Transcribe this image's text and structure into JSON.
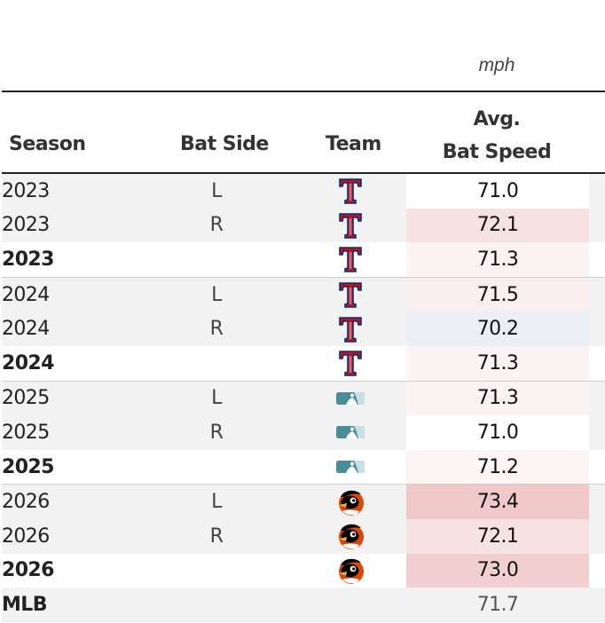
{
  "table": {
    "unit_label": "mph",
    "headers": {
      "season": "Season",
      "bat_side": "Bat Side",
      "team": "Team",
      "avg_bat_speed_line1": "Avg.",
      "avg_bat_speed_line2": "Bat Speed"
    },
    "rows": [
      {
        "season": "2023",
        "side": "L",
        "team": "texas-rangers-logo",
        "speed": "71.0",
        "bold": false,
        "shaded": true,
        "group_start": false,
        "cell_color": "#ffffff"
      },
      {
        "season": "2023",
        "side": "R",
        "team": "texas-rangers-logo",
        "speed": "72.1",
        "bold": false,
        "shaded": true,
        "group_start": false,
        "cell_color": "#f7e2e2"
      },
      {
        "season": "2023",
        "side": "",
        "team": "texas-rangers-logo",
        "speed": "71.3",
        "bold": true,
        "shaded": false,
        "group_start": false,
        "cell_color": "#fbf3f3"
      },
      {
        "season": "2024",
        "side": "L",
        "team": "texas-rangers-logo",
        "speed": "71.5",
        "bold": false,
        "shaded": true,
        "group_start": true,
        "cell_color": "#fbeeee"
      },
      {
        "season": "2024",
        "side": "R",
        "team": "texas-rangers-logo",
        "speed": "70.2",
        "bold": false,
        "shaded": true,
        "group_start": false,
        "cell_color": "#eceef6"
      },
      {
        "season": "2024",
        "side": "",
        "team": "texas-rangers-logo",
        "speed": "71.3",
        "bold": true,
        "shaded": false,
        "group_start": false,
        "cell_color": "#fbf3f3"
      },
      {
        "season": "2025",
        "side": "L",
        "team": "mlb-logo",
        "speed": "71.3",
        "bold": false,
        "shaded": true,
        "group_start": true,
        "cell_color": "#fbf3f3"
      },
      {
        "season": "2025",
        "side": "R",
        "team": "mlb-logo",
        "speed": "71.0",
        "bold": false,
        "shaded": true,
        "group_start": false,
        "cell_color": "#ffffff"
      },
      {
        "season": "2025",
        "side": "",
        "team": "mlb-logo",
        "speed": "71.2",
        "bold": true,
        "shaded": false,
        "group_start": false,
        "cell_color": "#fcf5f5"
      },
      {
        "season": "2026",
        "side": "L",
        "team": "baltimore-orioles-logo",
        "speed": "73.4",
        "bold": false,
        "shaded": true,
        "group_start": true,
        "cell_color": "#f0c8c8"
      },
      {
        "season": "2026",
        "side": "R",
        "team": "baltimore-orioles-logo",
        "speed": "72.1",
        "bold": false,
        "shaded": true,
        "group_start": false,
        "cell_color": "#f7e2e2"
      },
      {
        "season": "2026",
        "side": "",
        "team": "baltimore-orioles-logo",
        "speed": "73.0",
        "bold": true,
        "shaded": false,
        "group_start": false,
        "cell_color": "#f2d0d0"
      },
      {
        "season": "MLB",
        "side": "",
        "team": "",
        "speed": "71.7",
        "bold": true,
        "shaded": true,
        "group_start": false,
        "cell_color": ""
      }
    ]
  },
  "chart_data": {
    "type": "table",
    "columns": [
      "Season",
      "Bat Side",
      "Team",
      "Avg. Bat Speed"
    ],
    "unit": "mph",
    "rows": [
      [
        "2023",
        "L",
        "texas-rangers-logo",
        71.0
      ],
      [
        "2023",
        "R",
        "texas-rangers-logo",
        72.1
      ],
      [
        "2023",
        "",
        "texas-rangers-logo",
        71.3
      ],
      [
        "2024",
        "L",
        "texas-rangers-logo",
        71.5
      ],
      [
        "2024",
        "R",
        "texas-rangers-logo",
        70.2
      ],
      [
        "2024",
        "",
        "texas-rangers-logo",
        71.3
      ],
      [
        "2025",
        "L",
        "mlb-logo",
        71.3
      ],
      [
        "2025",
        "R",
        "mlb-logo",
        71.0
      ],
      [
        "2025",
        "",
        "mlb-logo",
        71.2
      ],
      [
        "2026",
        "L",
        "baltimore-orioles-logo",
        73.4
      ],
      [
        "2026",
        "R",
        "baltimore-orioles-logo",
        72.1
      ],
      [
        "2026",
        "",
        "baltimore-orioles-logo",
        73.0
      ],
      [
        "MLB",
        "",
        "",
        71.7
      ]
    ]
  }
}
